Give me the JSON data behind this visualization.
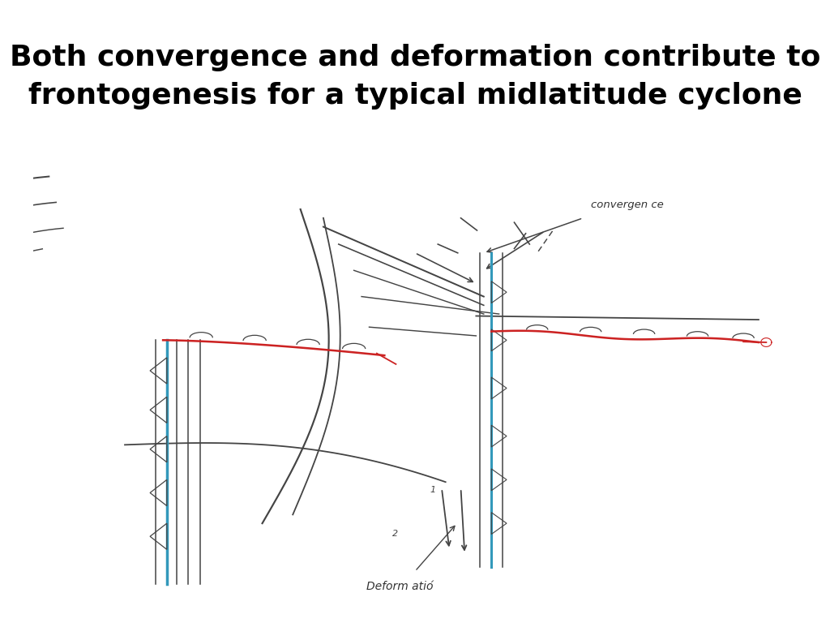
{
  "title_line1": "Both convergence and deformation contribute to",
  "title_line2": "frontogenesis for a typical midlatitude cyclone",
  "title_fontsize": 26,
  "title_fontweight": "bold",
  "title_color": "#000000",
  "bg_color": "#ffffff",
  "sketch_bg": "#e9ede5",
  "convergence_label": "convergen ce",
  "deformation_label": "Deform atió́",
  "gray": "#444444",
  "red": "#cc2222",
  "cyan": "#3399bb"
}
